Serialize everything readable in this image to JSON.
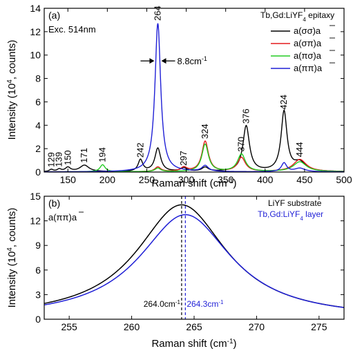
{
  "chart_data": [
    {
      "type": "line",
      "panel_label": "(a)",
      "annotation_exc": "Exc. 514nm",
      "legend_title": "Tb,Gd:LiYF",
      "legend_title_sub": "4",
      "legend_title_suffix": " epitaxy",
      "legend_placement": "top-right",
      "xlabel": "Raman shift (cm",
      "xlabel_sup": "-1",
      "xlabel_end": ")",
      "ylabel_pre": "Intensity (10",
      "ylabel_sup": "4",
      "ylabel_post": ", counts)",
      "xlim": [
        120,
        500
      ],
      "ylim": [
        0,
        14
      ],
      "xticks": [
        "150",
        "200",
        "250",
        "300",
        "350",
        "400",
        "450",
        "500"
      ],
      "yticks": [
        "0",
        "2",
        "4",
        "6",
        "8",
        "10",
        "12",
        "14"
      ],
      "series": [
        {
          "name": "a(σσ)a",
          "color": "#000000",
          "baseline": 0.02,
          "peaks": [
            [
              129,
              0.18,
              3
            ],
            [
              139,
              0.2,
              3
            ],
            [
              150,
              0.35,
              4
            ],
            [
              171,
              0.55,
              7
            ],
            [
              242,
              1.0,
              3.5
            ],
            [
              264,
              2.0,
              4.4
            ],
            [
              297,
              0.3,
              5
            ],
            [
              324,
              0.35,
              5
            ],
            [
              376,
              3.9,
              5
            ],
            [
              424,
              5.1,
              4.5
            ],
            [
              444,
              0.75,
              9
            ]
          ]
        },
        {
          "name": "a(σπ)a",
          "color": "#e41a1c",
          "baseline": 0.02,
          "peaks": [
            [
              264,
              0.4,
              4.4
            ],
            [
              297,
              0.35,
              5
            ],
            [
              324,
              2.6,
              5
            ],
            [
              370,
              1.2,
              6
            ],
            [
              444,
              1.05,
              10
            ]
          ]
        },
        {
          "name": "a(πσ)a",
          "color": "#22cc22",
          "baseline": 0.02,
          "peaks": [
            [
              194,
              0.6,
              4
            ],
            [
              264,
              0.3,
              4.4
            ],
            [
              324,
              2.35,
              5
            ],
            [
              370,
              1.5,
              6
            ],
            [
              444,
              0.85,
              10
            ]
          ]
        },
        {
          "name": "a(ππ)a",
          "color": "#1f1fd6",
          "baseline": 0.01,
          "peaks": [
            [
              264,
              12.7,
              4.4
            ],
            [
              324,
              0.5,
              5
            ],
            [
              424,
              0.75,
              4
            ],
            [
              444,
              0.3,
              8
            ]
          ]
        }
      ],
      "peak_labels": [
        {
          "x": 129,
          "y": 0.18,
          "label": "129"
        },
        {
          "x": 139,
          "y": 0.2,
          "label": "139"
        },
        {
          "x": 150,
          "y": 0.35,
          "label": "150"
        },
        {
          "x": 171,
          "y": 0.55,
          "label": "171"
        },
        {
          "x": 194,
          "y": 0.6,
          "label": "194"
        },
        {
          "x": 242,
          "y": 1.0,
          "label": "242"
        },
        {
          "x": 264,
          "y": 12.7,
          "label": "264"
        },
        {
          "x": 297,
          "y": 0.3,
          "label": "297"
        },
        {
          "x": 324,
          "y": 2.6,
          "label": "324"
        },
        {
          "x": 370,
          "y": 1.5,
          "label": "370"
        },
        {
          "x": 376,
          "y": 3.9,
          "label": "376"
        },
        {
          "x": 424,
          "y": 5.1,
          "label": "424"
        },
        {
          "x": 444,
          "y": 1.05,
          "label": "444"
        }
      ],
      "fwhm_annotation": {
        "value": "8.8cm",
        "sup": "-1",
        "x_left": 259.6,
        "x_right": 268.4,
        "y": 9.5
      }
    },
    {
      "type": "line",
      "panel_label": "(b)",
      "polarization_label": "a(ππ)a",
      "legend_placement": "top-right",
      "xlabel": "Raman shift (cm",
      "xlabel_sup": "-1",
      "xlabel_end": ")",
      "ylabel_pre": "Intensity (10",
      "ylabel_sup": "4",
      "ylabel_post": ", counts)",
      "xlim": [
        253,
        277
      ],
      "ylim": [
        0,
        15
      ],
      "xticks": [
        "255",
        "260",
        "265",
        "270",
        "275"
      ],
      "yticks": [
        "0",
        "3",
        "6",
        "9",
        "12",
        "15"
      ],
      "series": [
        {
          "name": "LiYF substrate",
          "name_sub": "",
          "color": "#000000",
          "center": 264.0,
          "amplitude": 13.95,
          "hwhm": 4.4
        },
        {
          "name": "Tb,Gd:LiYF",
          "name_sub": "4",
          "name_suffix": " layer",
          "color": "#1f1fd6",
          "center": 264.3,
          "amplitude": 12.75,
          "hwhm": 4.5
        }
      ],
      "markers": [
        {
          "x": 264.0,
          "label": "264.0cm",
          "sup": "-1",
          "color": "#000000"
        },
        {
          "x": 264.3,
          "label": "264.3cm",
          "sup": "-1",
          "color": "#1f1fd6"
        }
      ]
    }
  ]
}
